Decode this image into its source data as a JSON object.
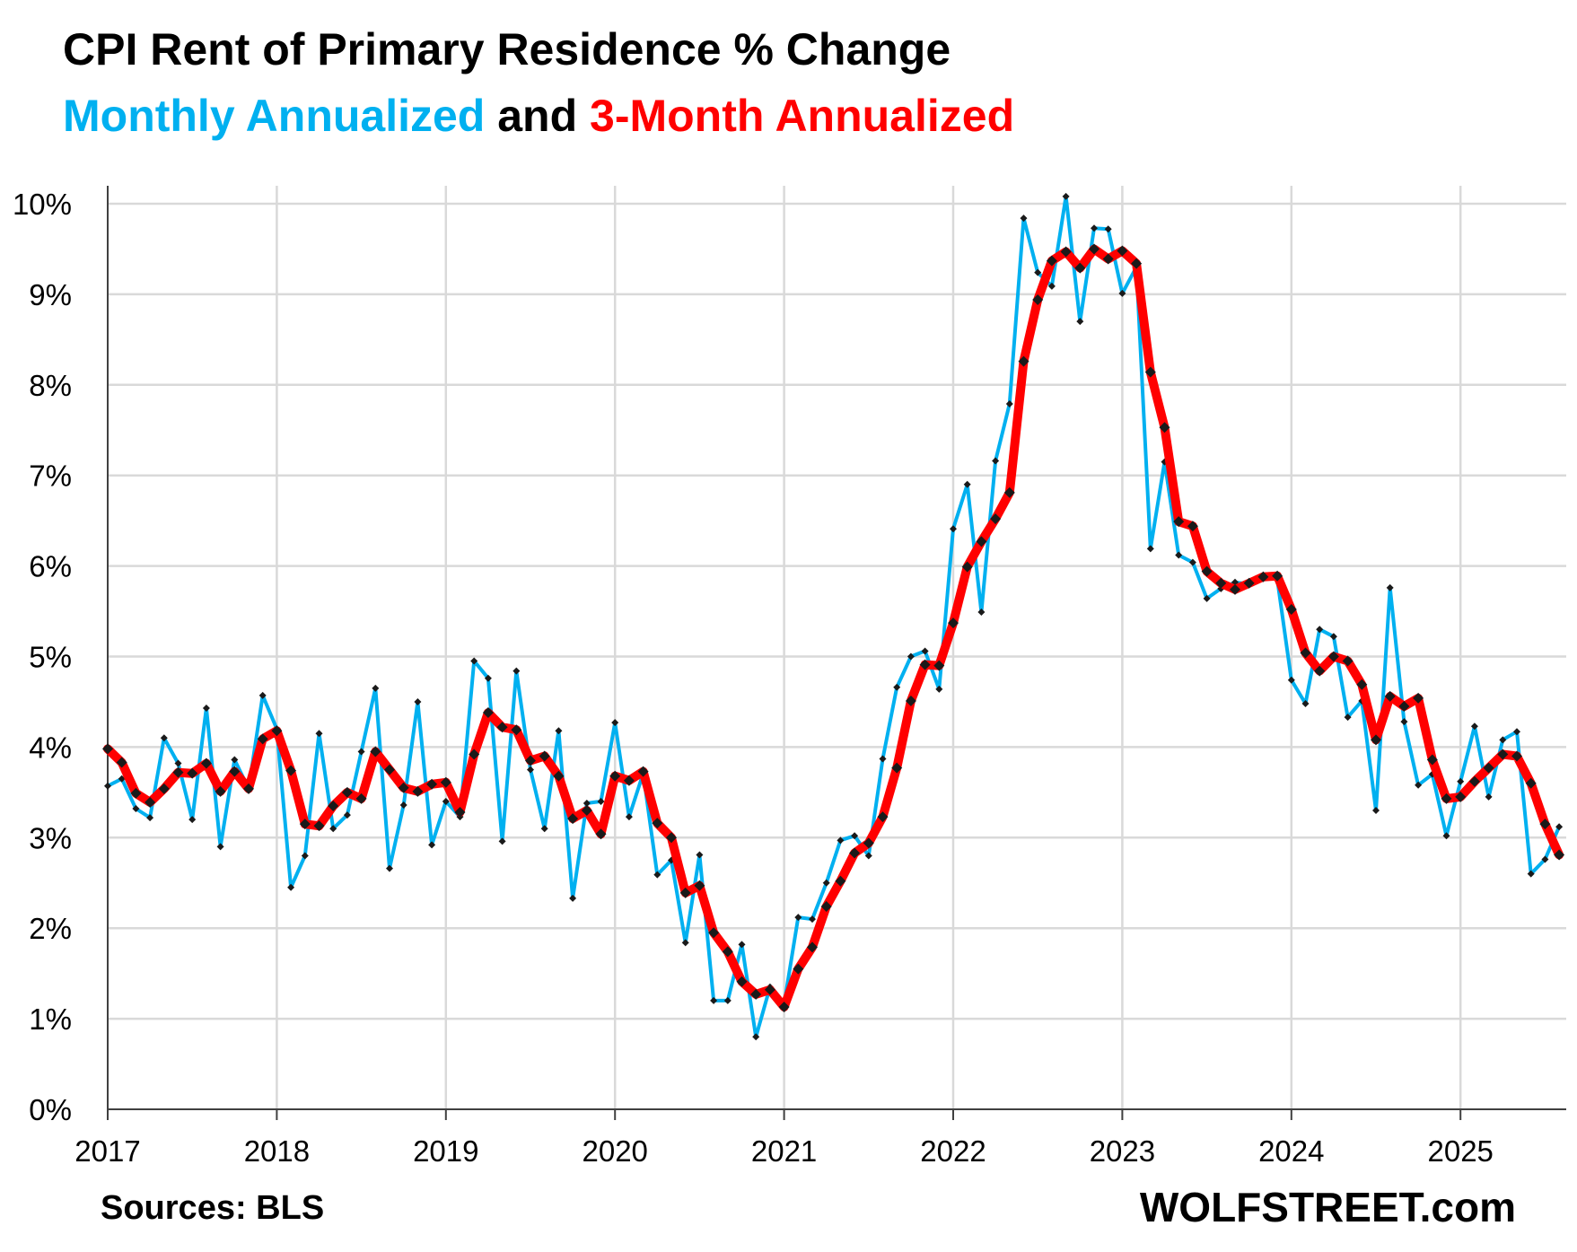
{
  "header": {
    "title": "CPI Rent of Primary Residence % Change",
    "subtitle_part1": "Monthly Annualized",
    "subtitle_part2": " and ",
    "subtitle_part3": "3-Month Annualized"
  },
  "footer": {
    "sources": "Sources: BLS",
    "watermark": "WOLFSTREET.com"
  },
  "colors": {
    "monthly": "#00B0F0",
    "three_month": "#FF0000",
    "marker": "#1a1a1a",
    "grid": "#d9d9d9",
    "axis": "#404040"
  },
  "chart_data": {
    "type": "line",
    "title": "CPI Rent of Primary Residence % Change",
    "xlabel": "",
    "ylabel": "",
    "x_start": "2017-01",
    "frequency": "monthly",
    "x_ticks": [
      "2017",
      "2018",
      "2019",
      "2020",
      "2021",
      "2022",
      "2023",
      "2024",
      "2025"
    ],
    "y_ticks": [
      "0%",
      "1%",
      "2%",
      "3%",
      "4%",
      "5%",
      "6%",
      "7%",
      "8%",
      "9%",
      "10%"
    ],
    "ylim": [
      0,
      10
    ],
    "unit": "%",
    "grid": true,
    "legend": "in subtitle",
    "series": [
      {
        "name": "Monthly Annualized",
        "color": "#00B0F0",
        "values": [
          3.57,
          3.65,
          3.32,
          3.22,
          4.1,
          3.82,
          3.2,
          4.43,
          2.9,
          3.86,
          3.54,
          4.57,
          4.2,
          2.45,
          2.8,
          4.15,
          3.1,
          3.25,
          3.95,
          4.65,
          2.66,
          3.36,
          4.5,
          2.92,
          3.4,
          3.23,
          4.95,
          4.76,
          2.96,
          4.84,
          3.75,
          3.1,
          4.18,
          2.33,
          3.38,
          3.4,
          4.27,
          3.23,
          3.71,
          2.59,
          2.75,
          1.84,
          2.81,
          1.2,
          1.2,
          1.82,
          0.8,
          1.35,
          1.16,
          2.12,
          2.1,
          2.5,
          2.97,
          3.02,
          2.8,
          3.87,
          4.66,
          5.0,
          5.06,
          4.64,
          6.41,
          6.9,
          5.49,
          7.16,
          7.79,
          9.84,
          9.24,
          9.09,
          10.08,
          8.7,
          9.73,
          9.72,
          9.01,
          9.3,
          6.19,
          7.15,
          6.12,
          6.04,
          5.64,
          5.75,
          5.82,
          5.8,
          5.9,
          5.85,
          4.74,
          4.48,
          5.3,
          5.22,
          4.33,
          4.51,
          3.3,
          5.76,
          4.28,
          3.58,
          3.7,
          3.02,
          3.62,
          4.23,
          3.45,
          4.08,
          4.17,
          2.6,
          2.76,
          3.12
        ]
      },
      {
        "name": "3-Month Annualized",
        "color": "#FF0000",
        "values": [
          3.98,
          3.83,
          3.49,
          3.39,
          3.54,
          3.72,
          3.71,
          3.82,
          3.51,
          3.73,
          3.54,
          4.09,
          4.18,
          3.74,
          3.15,
          3.13,
          3.35,
          3.5,
          3.43,
          3.95,
          3.75,
          3.55,
          3.51,
          3.59,
          3.61,
          3.28,
          3.92,
          4.38,
          4.22,
          4.19,
          3.85,
          3.9,
          3.68,
          3.21,
          3.3,
          3.04,
          3.68,
          3.63,
          3.73,
          3.16,
          3.0,
          2.39,
          2.47,
          1.95,
          1.74,
          1.41,
          1.27,
          1.32,
          1.13,
          1.55,
          1.79,
          2.24,
          2.52,
          2.83,
          2.94,
          3.23,
          3.77,
          4.51,
          4.91,
          4.9,
          5.37,
          5.99,
          6.27,
          6.52,
          6.81,
          8.26,
          8.94,
          9.37,
          9.47,
          9.29,
          9.5,
          9.39,
          9.48,
          9.34,
          8.14,
          7.53,
          6.49,
          6.44,
          5.94,
          5.81,
          5.74,
          5.81,
          5.88,
          5.89,
          5.52,
          5.04,
          4.84,
          5.0,
          4.95,
          4.69,
          4.08,
          4.56,
          4.45,
          4.54,
          3.86,
          3.43,
          3.45,
          3.62,
          3.77,
          3.92,
          3.9,
          3.6,
          3.15,
          2.81
        ]
      }
    ]
  }
}
